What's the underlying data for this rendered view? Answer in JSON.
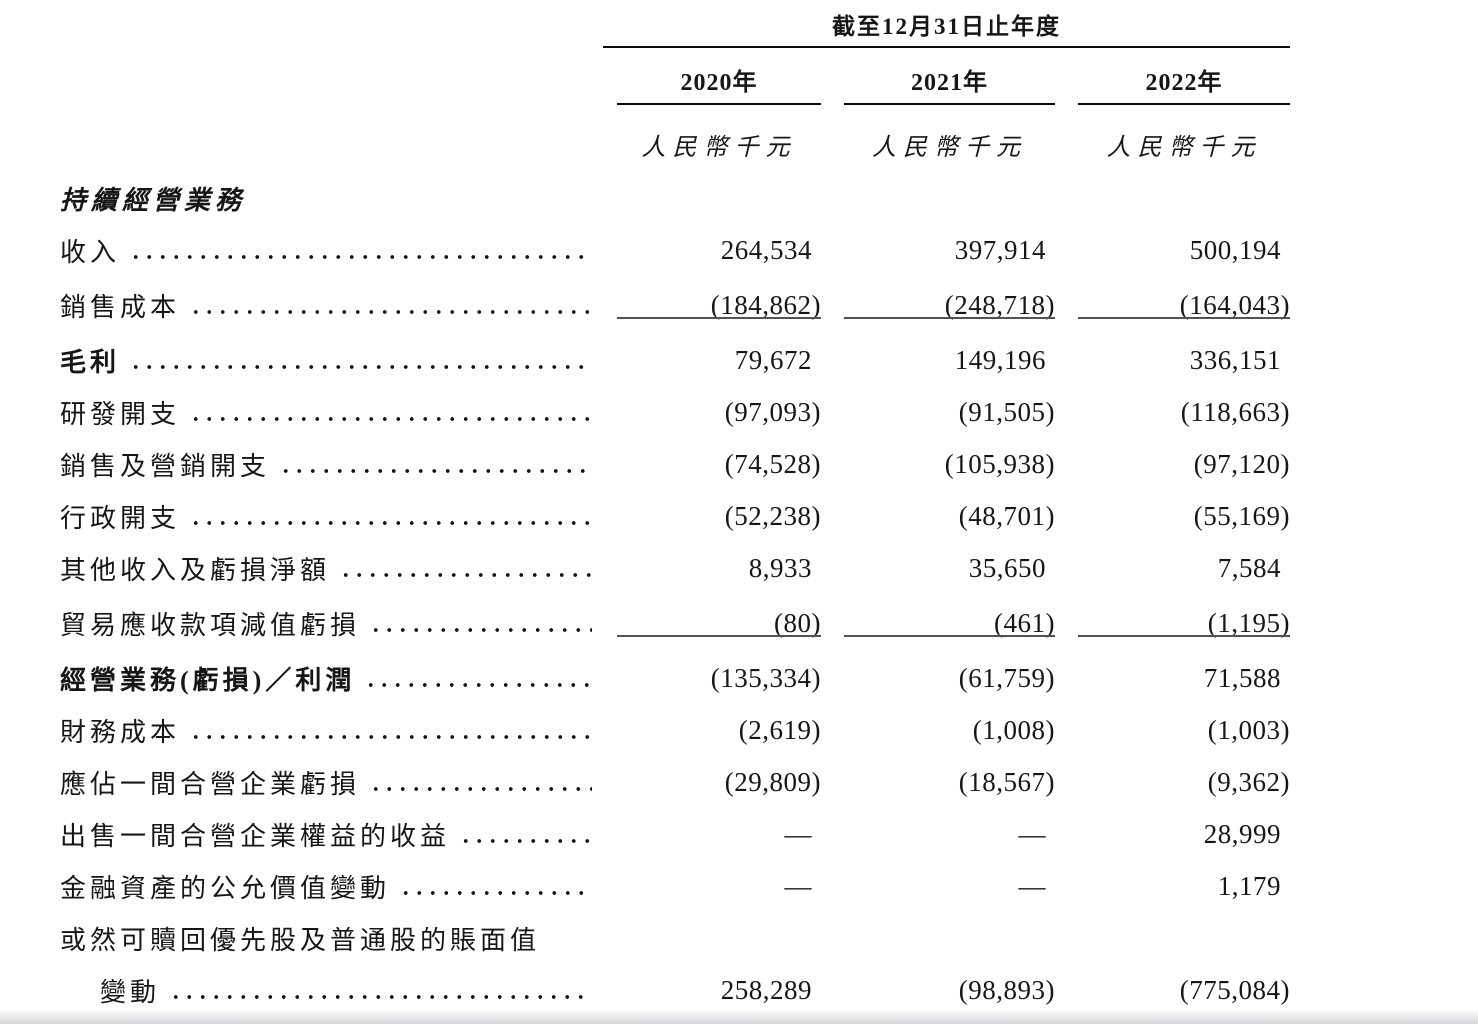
{
  "document": {
    "period_header": "截至12月31日止年度",
    "columns": [
      {
        "year": "2020年",
        "unit": "人民幣千元"
      },
      {
        "year": "2021年",
        "unit": "人民幣千元"
      },
      {
        "year": "2022年",
        "unit": "人民幣千元"
      }
    ],
    "rows": [
      {
        "label": "持續經營業務",
        "values": [
          "",
          "",
          ""
        ]
      },
      {
        "label": "收入",
        "values": [
          "264,534",
          "397,914",
          "500,194"
        ]
      },
      {
        "label": "銷售成本",
        "values": [
          "(184,862)",
          "(248,718)",
          "(164,043)"
        ]
      },
      {
        "label": "毛利",
        "values": [
          "79,672",
          "149,196",
          "336,151"
        ]
      },
      {
        "label": "研發開支",
        "values": [
          "(97,093)",
          "(91,505)",
          "(118,663)"
        ]
      },
      {
        "label": "銷售及營銷開支",
        "values": [
          "(74,528)",
          "(105,938)",
          "(97,120)"
        ]
      },
      {
        "label": "行政開支",
        "values": [
          "(52,238)",
          "(48,701)",
          "(55,169)"
        ]
      },
      {
        "label": "其他收入及虧損淨額",
        "values": [
          "8,933",
          "35,650",
          "7,584"
        ]
      },
      {
        "label": "貿易應收款項減值虧損",
        "values": [
          "(80)",
          "(461)",
          "(1,195)"
        ]
      },
      {
        "label": "經營業務(虧損)／利潤",
        "values": [
          "(135,334)",
          "(61,759)",
          "71,588"
        ]
      },
      {
        "label": "財務成本",
        "values": [
          "(2,619)",
          "(1,008)",
          "(1,003)"
        ]
      },
      {
        "label": "應佔一間合營企業虧損",
        "values": [
          "(29,809)",
          "(18,567)",
          "(9,362)"
        ]
      },
      {
        "label": "出售一間合營企業權益的收益",
        "values": [
          "—",
          "—",
          "28,999"
        ]
      },
      {
        "label": "金融資產的公允價值變動",
        "values": [
          "—",
          "—",
          "1,179"
        ]
      },
      {
        "label": "或然可贖回優先股及普通股的賬面值",
        "values": [
          "",
          "",
          ""
        ]
      },
      {
        "label": "變動",
        "values": [
          "258,289",
          "(98,893)",
          "(775,084)"
        ]
      }
    ]
  }
}
